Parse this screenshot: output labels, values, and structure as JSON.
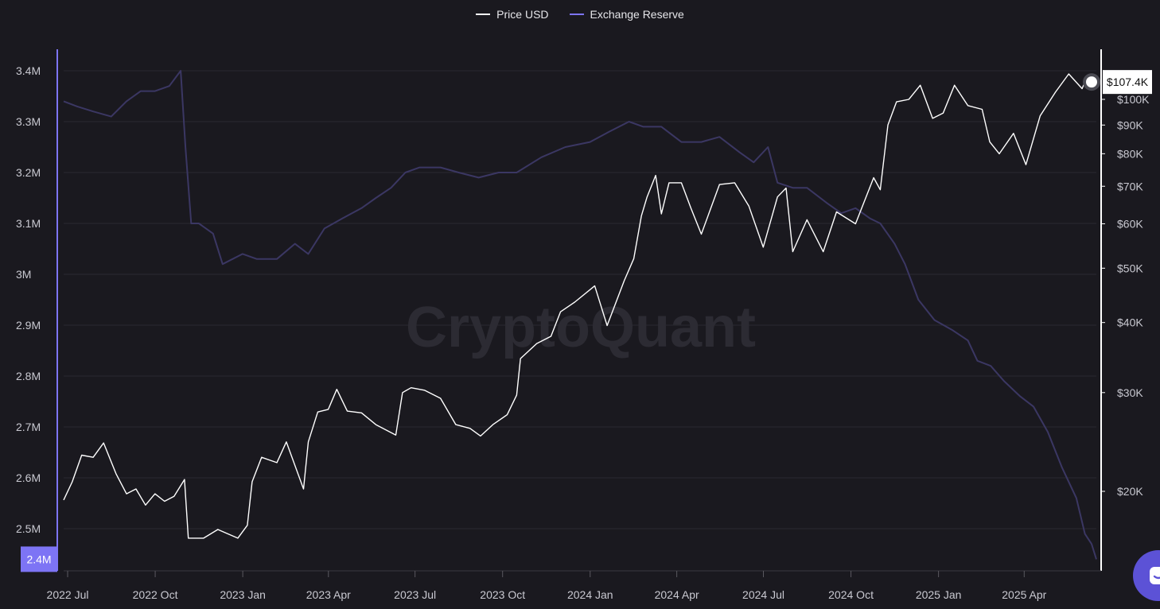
{
  "legend": {
    "price_label": "Price USD",
    "reserve_label": "Exchange Reserve"
  },
  "watermark": "CryptoQuant",
  "colors": {
    "background": "#1a191f",
    "grid": "#2a2930",
    "price_line": "#ffffff",
    "reserve_line": "#3b3763",
    "reserve_accent": "#7d74f5",
    "chat_button": "#5c52d6"
  },
  "chart_data": {
    "type": "line",
    "x_ticks": [
      "2022 Jul",
      "2022 Oct",
      "2023 Jan",
      "2023 Apr",
      "2023 Jul",
      "2023 Oct",
      "2024 Jan",
      "2024 Apr",
      "2024 Jul",
      "2024 Oct",
      "2025 Jan",
      "2025 Apr"
    ],
    "x_range": [
      "2022-07-01",
      "2025-06-20"
    ],
    "left_axis": {
      "title": "",
      "ticks": [
        "3.4M",
        "3.3M",
        "3.2M",
        "3.1M",
        "3M",
        "2.9M",
        "2.8M",
        "2.7M",
        "2.6M",
        "2.5M"
      ],
      "tick_values": [
        3400000,
        3300000,
        3200000,
        3100000,
        3000000,
        2900000,
        2800000,
        2700000,
        2600000,
        2500000
      ],
      "current_label": "2.4M",
      "current_value": 2440000,
      "range": [
        2400000,
        3400000
      ]
    },
    "right_axis": {
      "title": "",
      "scale": "log",
      "ticks": [
        "$100K",
        "$90K",
        "$80K",
        "$70K",
        "$60K",
        "$50K",
        "$40K",
        "$30K",
        "$20K"
      ],
      "tick_values": [
        100000,
        90000,
        80000,
        70000,
        60000,
        50000,
        40000,
        30000,
        20000
      ],
      "current_label": "$107.4K",
      "current_value": 107400
    },
    "grid": true,
    "series": [
      {
        "name": "Price USD",
        "axis": "right",
        "points": [
          [
            "2022-07-01",
            19300
          ],
          [
            "2022-07-10",
            20800
          ],
          [
            "2022-07-20",
            23200
          ],
          [
            "2022-08-01",
            23000
          ],
          [
            "2022-08-12",
            24400
          ],
          [
            "2022-08-25",
            21500
          ],
          [
            "2022-09-05",
            19800
          ],
          [
            "2022-09-15",
            20200
          ],
          [
            "2022-09-25",
            18900
          ],
          [
            "2022-10-05",
            19800
          ],
          [
            "2022-10-15",
            19200
          ],
          [
            "2022-10-25",
            19600
          ],
          [
            "2022-11-05",
            21000
          ],
          [
            "2022-11-09",
            16500
          ],
          [
            "2022-11-25",
            16500
          ],
          [
            "2022-12-10",
            17100
          ],
          [
            "2022-12-31",
            16500
          ],
          [
            "2023-01-10",
            17400
          ],
          [
            "2023-01-15",
            20800
          ],
          [
            "2023-01-25",
            23000
          ],
          [
            "2023-02-10",
            22500
          ],
          [
            "2023-02-20",
            24500
          ],
          [
            "2023-03-10",
            20200
          ],
          [
            "2023-03-15",
            24500
          ],
          [
            "2023-03-25",
            27700
          ],
          [
            "2023-04-05",
            28000
          ],
          [
            "2023-04-14",
            30400
          ],
          [
            "2023-04-25",
            27800
          ],
          [
            "2023-05-10",
            27600
          ],
          [
            "2023-05-25",
            26300
          ],
          [
            "2023-06-15",
            25200
          ],
          [
            "2023-06-22",
            30000
          ],
          [
            "2023-07-01",
            30600
          ],
          [
            "2023-07-15",
            30300
          ],
          [
            "2023-08-01",
            29300
          ],
          [
            "2023-08-17",
            26300
          ],
          [
            "2023-09-01",
            25900
          ],
          [
            "2023-09-12",
            25100
          ],
          [
            "2023-09-25",
            26300
          ],
          [
            "2023-10-10",
            27400
          ],
          [
            "2023-10-20",
            29700
          ],
          [
            "2023-10-24",
            34500
          ],
          [
            "2023-11-10",
            36700
          ],
          [
            "2023-11-25",
            37800
          ],
          [
            "2023-12-05",
            41800
          ],
          [
            "2023-12-20",
            43500
          ],
          [
            "2024-01-10",
            46500
          ],
          [
            "2024-01-23",
            39500
          ],
          [
            "2024-02-10",
            47500
          ],
          [
            "2024-02-20",
            52000
          ],
          [
            "2024-02-28",
            62000
          ],
          [
            "2024-03-05",
            67000
          ],
          [
            "2024-03-14",
            73200
          ],
          [
            "2024-03-20",
            62500
          ],
          [
            "2024-03-28",
            71000
          ],
          [
            "2024-04-10",
            71000
          ],
          [
            "2024-04-20",
            64000
          ],
          [
            "2024-05-01",
            57500
          ],
          [
            "2024-05-20",
            70500
          ],
          [
            "2024-06-05",
            71000
          ],
          [
            "2024-06-20",
            64500
          ],
          [
            "2024-07-05",
            54500
          ],
          [
            "2024-07-20",
            67000
          ],
          [
            "2024-07-29",
            69500
          ],
          [
            "2024-08-05",
            53500
          ],
          [
            "2024-08-20",
            61000
          ],
          [
            "2024-09-06",
            53500
          ],
          [
            "2024-09-20",
            63000
          ],
          [
            "2024-10-10",
            60000
          ],
          [
            "2024-10-29",
            72500
          ],
          [
            "2024-11-05",
            69000
          ],
          [
            "2024-11-13",
            90000
          ],
          [
            "2024-11-22",
            99000
          ],
          [
            "2024-12-05",
            100000
          ],
          [
            "2024-12-17",
            106000
          ],
          [
            "2024-12-30",
            92500
          ],
          [
            "2025-01-10",
            94500
          ],
          [
            "2025-01-22",
            106000
          ],
          [
            "2025-02-05",
            97500
          ],
          [
            "2025-02-20",
            96000
          ],
          [
            "2025-02-28",
            84000
          ],
          [
            "2025-03-10",
            80000
          ],
          [
            "2025-03-25",
            87000
          ],
          [
            "2025-04-07",
            76500
          ],
          [
            "2025-04-22",
            93500
          ],
          [
            "2025-05-08",
            103000
          ],
          [
            "2025-05-22",
            111000
          ],
          [
            "2025-06-05",
            104500
          ],
          [
            "2025-06-10",
            109500
          ],
          [
            "2025-06-14",
            105500
          ],
          [
            "2025-06-20",
            107400
          ]
        ]
      },
      {
        "name": "Exchange Reserve",
        "axis": "left",
        "points": [
          [
            "2022-07-01",
            3340000
          ],
          [
            "2022-07-15",
            3330000
          ],
          [
            "2022-08-01",
            3320000
          ],
          [
            "2022-08-20",
            3310000
          ],
          [
            "2022-09-05",
            3340000
          ],
          [
            "2022-09-20",
            3360000
          ],
          [
            "2022-10-05",
            3360000
          ],
          [
            "2022-10-20",
            3370000
          ],
          [
            "2022-11-01",
            3400000
          ],
          [
            "2022-11-06",
            3250000
          ],
          [
            "2022-11-12",
            3100000
          ],
          [
            "2022-11-20",
            3100000
          ],
          [
            "2022-12-05",
            3080000
          ],
          [
            "2022-12-15",
            3020000
          ],
          [
            "2023-01-05",
            3040000
          ],
          [
            "2023-01-20",
            3030000
          ],
          [
            "2023-02-10",
            3030000
          ],
          [
            "2023-03-01",
            3060000
          ],
          [
            "2023-03-15",
            3040000
          ],
          [
            "2023-04-01",
            3090000
          ],
          [
            "2023-04-20",
            3110000
          ],
          [
            "2023-05-10",
            3130000
          ],
          [
            "2023-05-25",
            3150000
          ],
          [
            "2023-06-10",
            3170000
          ],
          [
            "2023-06-25",
            3200000
          ],
          [
            "2023-07-10",
            3210000
          ],
          [
            "2023-08-01",
            3210000
          ],
          [
            "2023-08-20",
            3200000
          ],
          [
            "2023-09-10",
            3190000
          ],
          [
            "2023-10-01",
            3200000
          ],
          [
            "2023-10-20",
            3200000
          ],
          [
            "2023-11-15",
            3230000
          ],
          [
            "2023-12-10",
            3250000
          ],
          [
            "2024-01-05",
            3260000
          ],
          [
            "2024-01-25",
            3280000
          ],
          [
            "2024-02-15",
            3300000
          ],
          [
            "2024-03-01",
            3290000
          ],
          [
            "2024-03-20",
            3290000
          ],
          [
            "2024-04-10",
            3260000
          ],
          [
            "2024-05-01",
            3260000
          ],
          [
            "2024-05-20",
            3270000
          ],
          [
            "2024-06-10",
            3240000
          ],
          [
            "2024-06-25",
            3220000
          ],
          [
            "2024-07-10",
            3250000
          ],
          [
            "2024-07-20",
            3180000
          ],
          [
            "2024-08-05",
            3170000
          ],
          [
            "2024-08-20",
            3170000
          ],
          [
            "2024-09-10",
            3140000
          ],
          [
            "2024-09-25",
            3120000
          ],
          [
            "2024-10-10",
            3130000
          ],
          [
            "2024-10-25",
            3110000
          ],
          [
            "2024-11-05",
            3100000
          ],
          [
            "2024-11-20",
            3060000
          ],
          [
            "2024-12-01",
            3020000
          ],
          [
            "2024-12-15",
            2950000
          ],
          [
            "2025-01-01",
            2910000
          ],
          [
            "2025-01-20",
            2890000
          ],
          [
            "2025-02-05",
            2870000
          ],
          [
            "2025-02-15",
            2830000
          ],
          [
            "2025-03-01",
            2820000
          ],
          [
            "2025-03-15",
            2790000
          ],
          [
            "2025-04-01",
            2760000
          ],
          [
            "2025-04-15",
            2740000
          ],
          [
            "2025-04-30",
            2690000
          ],
          [
            "2025-05-15",
            2620000
          ],
          [
            "2025-05-30",
            2560000
          ],
          [
            "2025-06-08",
            2490000
          ],
          [
            "2025-06-15",
            2470000
          ],
          [
            "2025-06-20",
            2440000
          ]
        ]
      }
    ]
  }
}
